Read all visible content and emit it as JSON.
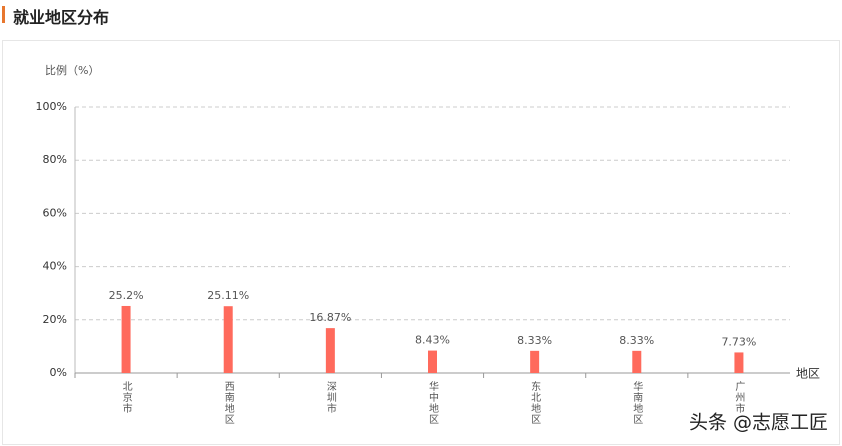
{
  "header": {
    "title": "就业地区分布"
  },
  "chart_data": {
    "type": "bar",
    "y_label": "比例（%）",
    "x_label": "地区",
    "categories": [
      "北京市",
      "西南地区",
      "深圳市",
      "华中地区",
      "东北地区",
      "华南地区",
      "广州市"
    ],
    "values": [
      25.2,
      25.11,
      16.87,
      8.43,
      8.33,
      8.33,
      7.73
    ],
    "value_labels": [
      "25.2%",
      "25.11%",
      "16.87%",
      "8.43%",
      "8.33%",
      "8.33%",
      "7.73%"
    ],
    "color": "#ff6a5c",
    "ylim": [
      0,
      100
    ],
    "yticks": [
      {
        "value": 0,
        "label": "0%"
      },
      {
        "value": 20,
        "label": "20%"
      },
      {
        "value": 40,
        "label": "40%"
      },
      {
        "value": 60,
        "label": "60%"
      },
      {
        "value": 80,
        "label": "80%"
      },
      {
        "value": 100,
        "label": "100%"
      }
    ],
    "grid": true
  },
  "watermark": "头条 @志愿工匠"
}
